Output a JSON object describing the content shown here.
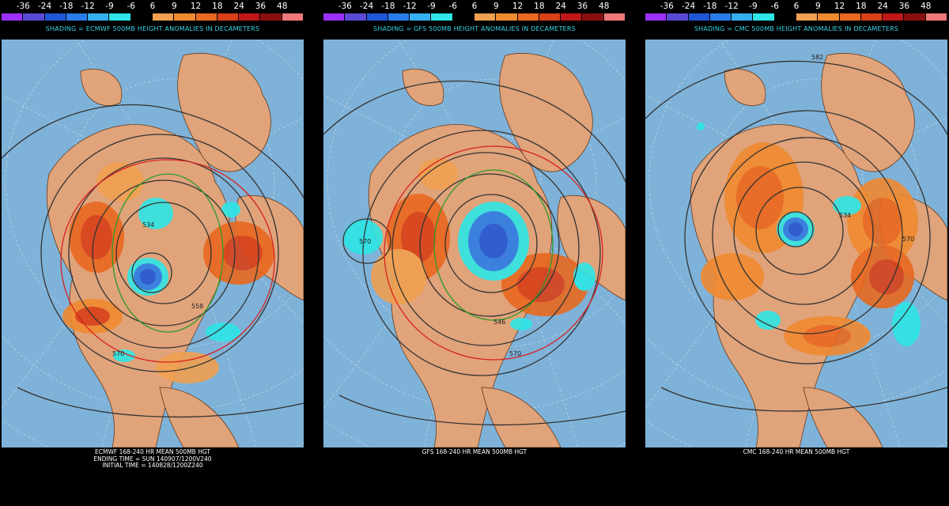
{
  "legend": {
    "ticks": [
      "-36",
      "-24",
      "-18",
      "-12",
      "-9",
      "-6",
      "6",
      "9",
      "12",
      "18",
      "24",
      "36",
      "48"
    ],
    "colors": [
      "#9b30ff",
      "#5a4ad6",
      "#1f56d8",
      "#2a7de8",
      "#34b0f0",
      "#2ee6e6",
      "#000000",
      "#f0a050",
      "#f08a30",
      "#e86820",
      "#d84018",
      "#c01818",
      "#8a1010",
      "#f07878"
    ]
  },
  "panels": [
    {
      "model": "ECMWF",
      "shading_title": "SHADING = ECMWF 500MB HEIGHT ANOMALIES IN DECAMETERS",
      "caption_lines": [
        "ECMWF 168-240 HR MEAN 500MB HGT",
        "ENDING TIME = SUN 140907/1200V240",
        "INITIAL TIME = 140828/1200Z240"
      ],
      "contour_labels": [
        "534",
        "570",
        "558"
      ]
    },
    {
      "model": "GFS",
      "shading_title": "SHADING = GFS 500MB HEIGHT ANOMALIES IN DECAMETERS",
      "caption_lines": [
        "GFS 168-240 HR MEAN 500MB HGT"
      ],
      "contour_labels": [
        "570",
        "546",
        "570"
      ]
    },
    {
      "model": "CMC",
      "shading_title": "SHADING = CMC 500MB HEIGHT ANOMALIES IN DECAMETERS",
      "caption_lines": [
        "CMC 168-240 HR MEAN 500MB HGT"
      ],
      "contour_labels": [
        "582",
        "534",
        "570"
      ]
    }
  ]
}
